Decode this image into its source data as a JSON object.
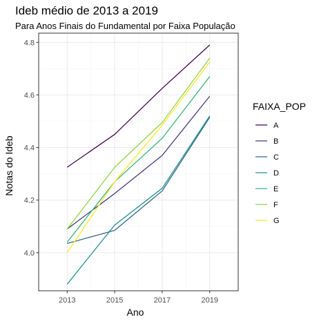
{
  "chart_data": {
    "type": "line",
    "title": "Ideb médio de 2013 a 2019",
    "subtitle": "Para Anos Finais do Fundamental por Faixa População",
    "xlabel": "Ano",
    "ylabel": "Notas do Ideb",
    "x": [
      2013,
      2015,
      2017,
      2019
    ],
    "xlim": [
      2011.8,
      2020.2
    ],
    "ylim": [
      3.855,
      4.835
    ],
    "x_ticks": [
      "2013",
      "2015",
      "2017",
      "2019"
    ],
    "y_ticks": [
      "4.0",
      "4.2",
      "4.4",
      "4.6",
      "4.8"
    ],
    "grid": true,
    "legend_title": "FAIXA_POP",
    "legend_position": "right",
    "series": [
      {
        "name": "A",
        "color": "#440154",
        "values": [
          4.325,
          4.45,
          4.625,
          4.79
        ]
      },
      {
        "name": "B",
        "color": "#443A83",
        "values": [
          4.09,
          4.225,
          4.37,
          4.595
        ]
      },
      {
        "name": "C",
        "color": "#31688E",
        "values": [
          4.035,
          4.085,
          4.235,
          4.515
        ]
      },
      {
        "name": "D",
        "color": "#21908C",
        "values": [
          3.88,
          4.105,
          4.245,
          4.52
        ]
      },
      {
        "name": "E",
        "color": "#35B779",
        "values": [
          4.04,
          4.27,
          4.435,
          4.67
        ]
      },
      {
        "name": "F",
        "color": "#8FD744",
        "values": [
          4.09,
          4.325,
          4.495,
          4.74
        ]
      },
      {
        "name": "G",
        "color": "#FDE725",
        "values": [
          4.0,
          4.27,
          4.485,
          4.725
        ]
      }
    ]
  }
}
